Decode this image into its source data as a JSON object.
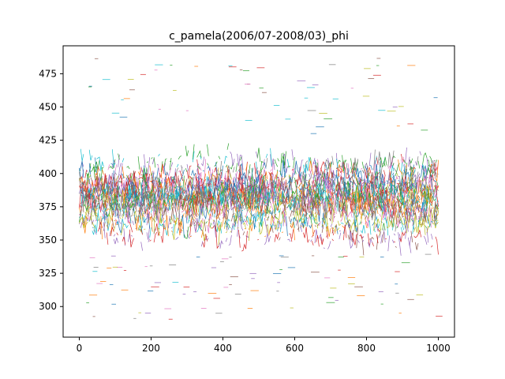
{
  "chart_data": {
    "type": "line",
    "title": "c_pamela(2006/07-2008/03)_phi",
    "xlabel": "",
    "ylabel": "",
    "xlim": [
      -45,
      1045
    ],
    "ylim": [
      277,
      496
    ],
    "x_ticks": [
      0,
      200,
      400,
      600,
      800,
      1000
    ],
    "x_tick_labels": [
      "0",
      "200",
      "400",
      "600",
      "800",
      "1000"
    ],
    "y_ticks": [
      300,
      325,
      350,
      375,
      400,
      425,
      450,
      475
    ],
    "y_tick_labels": [
      "300",
      "325",
      "350",
      "375",
      "400",
      "425",
      "450",
      "475"
    ],
    "grid": false,
    "legend": "none",
    "x_range": [
      0,
      1000
    ],
    "series_count": 120,
    "distribution": {
      "center": 383,
      "core_band": [
        340,
        430
      ],
      "outer_band": [
        290,
        487
      ]
    },
    "palette": [
      "#1f77b4",
      "#ff7f0e",
      "#2ca02c",
      "#d62728",
      "#9467bd",
      "#8c564b",
      "#e377c2",
      "#7f7f7f",
      "#bcbd22",
      "#17becf"
    ]
  }
}
